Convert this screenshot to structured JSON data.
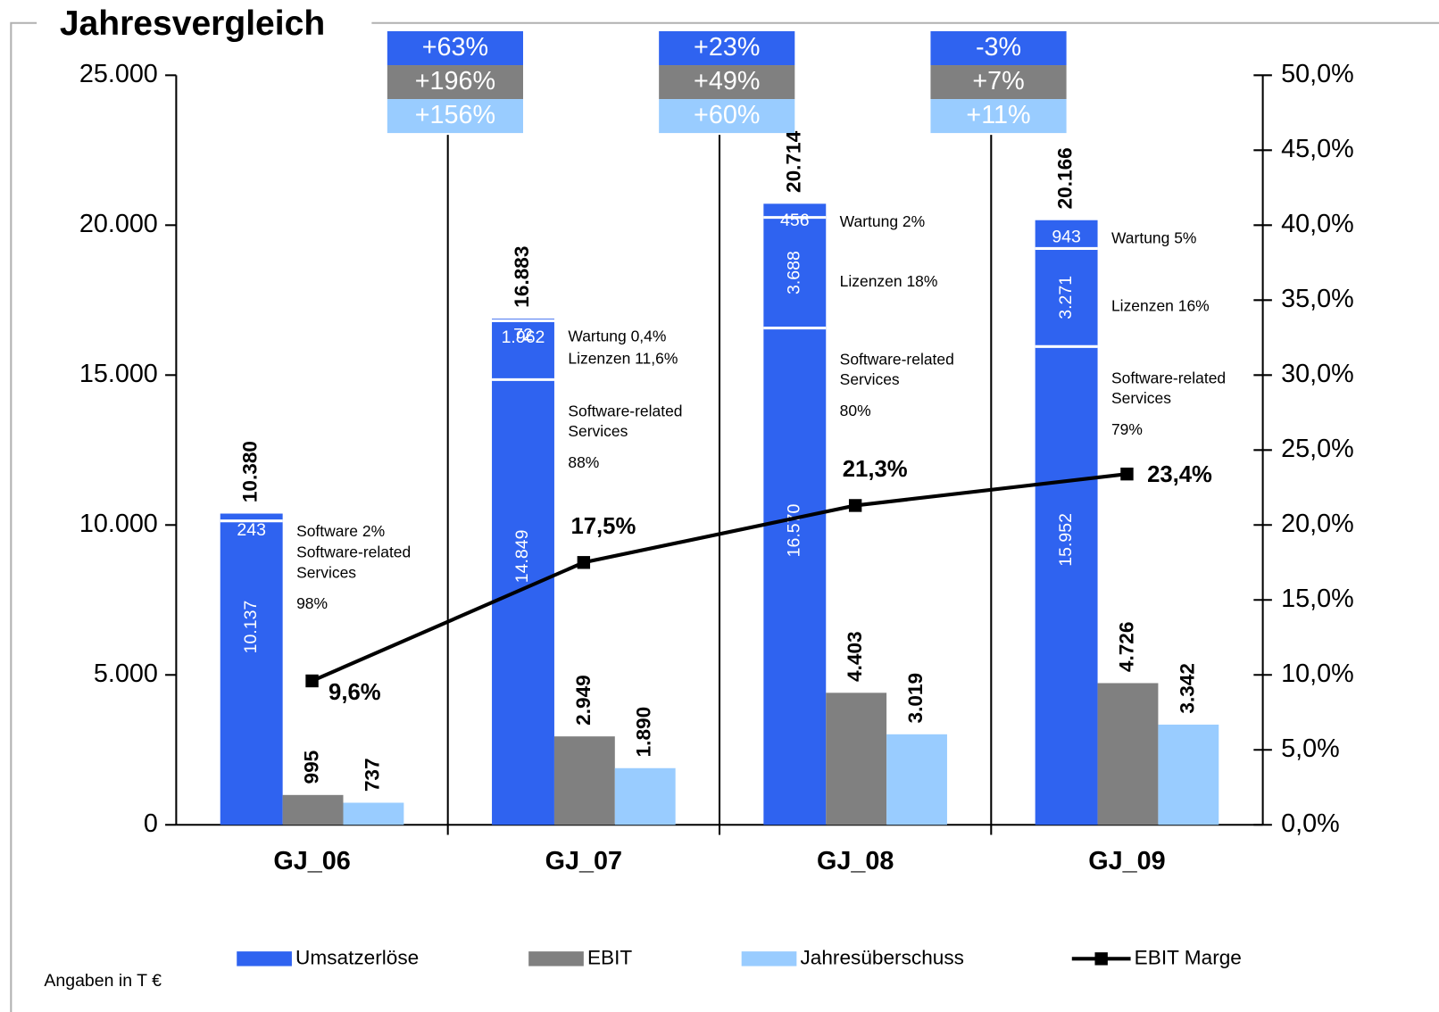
{
  "chart_data": {
    "type": "bar",
    "title": "Jahresvergleich",
    "note": "Angaben in T €",
    "categories": [
      "GJ_06",
      "GJ_07",
      "GJ_08",
      "GJ_09"
    ],
    "ylim": [
      0,
      25000
    ],
    "yticks": [
      0,
      {
        "value": 5000,
        "label": "5.000"
      },
      {
        "value": 10000,
        "label": "10.000"
      },
      {
        "value": 15000,
        "label": "15.000"
      },
      {
        "value": 20000,
        "label": "20.000"
      },
      {
        "value": 25000,
        "label": "25.000"
      }
    ],
    "y2lim": [
      0,
      50
    ],
    "y2ticks": [
      {
        "value": 0,
        "label": "0,0%"
      },
      {
        "value": 5,
        "label": "5,0%"
      },
      {
        "value": 10,
        "label": "10,0%"
      },
      {
        "value": 15,
        "label": "15,0%"
      },
      {
        "value": 20,
        "label": "20,0%"
      },
      {
        "value": 25,
        "label": "25,0%"
      },
      {
        "value": 30,
        "label": "30,0%"
      },
      {
        "value": 35,
        "label": "35,0%"
      },
      {
        "value": 40,
        "label": "40,0%"
      },
      {
        "value": 45,
        "label": "45,0%"
      },
      {
        "value": 50,
        "label": "50,0%"
      }
    ],
    "series": [
      {
        "name": "Umsatzerlöse",
        "color": "#2f63f0",
        "stacks": [
          [
            {
              "value": 10137,
              "value_label": "10.137",
              "label": [
                "Software-related",
                "Services",
                "98%"
              ]
            },
            {
              "value": 243,
              "value_label": "243",
              "label": [
                "Software 2%"
              ]
            }
          ],
          [
            {
              "value": 14849,
              "value_label": "14.849",
              "label": [
                "Software-related",
                "Services",
                "88%"
              ]
            },
            {
              "value": 1962,
              "value_label": "1.962",
              "label": [
                "Lizenzen 11,6%"
              ]
            },
            {
              "value": 72,
              "value_label": "72",
              "label": [
                "Wartung 0,4%"
              ]
            }
          ],
          [
            {
              "value": 16570,
              "value_label": "16.570",
              "label": [
                "Software-related",
                "Services",
                "80%"
              ]
            },
            {
              "value": 3688,
              "value_label": "3.688",
              "label": [
                "Lizenzen 18%"
              ]
            },
            {
              "value": 456,
              "value_label": "456",
              "label": [
                "Wartung 2%"
              ]
            }
          ],
          [
            {
              "value": 15952,
              "value_label": "15.952",
              "label": [
                "Software-related",
                "Services",
                "79%"
              ]
            },
            {
              "value": 3271,
              "value_label": "3.271",
              "label": [
                "Lizenzen 16%"
              ]
            },
            {
              "value": 943,
              "value_label": "943",
              "label": [
                "Wartung 5%"
              ]
            }
          ]
        ],
        "totals": [
          10380,
          16883,
          20714,
          20166
        ],
        "total_labels": [
          "10.380",
          "16.883",
          "20.714",
          "20.166"
        ]
      },
      {
        "name": "EBIT",
        "color": "#808080",
        "values": [
          995,
          2949,
          4403,
          4726
        ],
        "value_labels": [
          "995",
          "2.949",
          "4.403",
          "4.726"
        ]
      },
      {
        "name": "Jahresüberschuss",
        "color": "#99ccff",
        "values": [
          737,
          1890,
          3019,
          3342
        ],
        "value_labels": [
          "737",
          "1.890",
          "3.019",
          "3.342"
        ]
      },
      {
        "name": "EBIT Marge",
        "type": "line",
        "axis": "y2",
        "color": "#000000",
        "values": [
          9.6,
          17.5,
          21.3,
          23.4
        ],
        "value_labels": [
          "9,6%",
          "17,5%",
          "21,3%",
          "23,4%"
        ]
      }
    ],
    "growth": [
      {
        "values": [
          63,
          196,
          156
        ],
        "value_labels": [
          "+63%",
          "+196%",
          "+156%"
        ]
      },
      {
        "values": [
          23,
          49,
          60
        ],
        "value_labels": [
          "+23%",
          "+49%",
          "+60%"
        ]
      },
      {
        "values": [
          -3,
          7,
          11
        ],
        "value_labels": [
          "-3%",
          "+7%",
          "+11%"
        ]
      }
    ]
  }
}
